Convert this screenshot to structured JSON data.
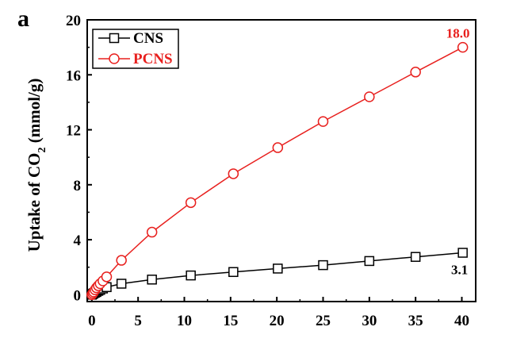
{
  "panel_label": "a",
  "chart_data": {
    "type": "line",
    "title": "",
    "xlabel": "",
    "ylabel": "Uptake of CO₂ (mmol/g)",
    "ylabel_parts": {
      "main": "Uptake of CO",
      "sub": "2",
      "unit": " (mmol/g)"
    },
    "xlim": [
      -0.5,
      41.5
    ],
    "ylim": [
      -0.5,
      20
    ],
    "xticks": [
      0,
      5,
      10,
      15,
      20,
      25,
      30,
      35,
      40
    ],
    "yticks": [
      0,
      4,
      8,
      12,
      16,
      20
    ],
    "legend_position": "top-left",
    "series": [
      {
        "name": "CNS",
        "color": "#000000",
        "marker": "square",
        "x": [
          0,
          0.1,
          0.2,
          0.35,
          0.5,
          0.7,
          0.9,
          1.2,
          1.6,
          3.2,
          6.5,
          10.7,
          15.3,
          20.1,
          25.0,
          30.0,
          35.0,
          40.1
        ],
        "y": [
          0.0,
          0.05,
          0.1,
          0.15,
          0.2,
          0.28,
          0.35,
          0.45,
          0.55,
          0.8,
          1.1,
          1.4,
          1.65,
          1.9,
          2.15,
          2.45,
          2.75,
          3.05
        ]
      },
      {
        "name": "PCNS",
        "color": "#e8201e",
        "marker": "circle",
        "x": [
          0,
          0.1,
          0.2,
          0.35,
          0.5,
          0.7,
          0.9,
          1.2,
          1.6,
          3.2,
          6.5,
          10.7,
          15.3,
          20.1,
          25.0,
          30.0,
          35.0,
          40.1
        ],
        "y": [
          0.0,
          0.1,
          0.2,
          0.35,
          0.5,
          0.65,
          0.8,
          1.0,
          1.3,
          2.5,
          4.55,
          6.7,
          8.8,
          10.7,
          12.6,
          14.4,
          16.2,
          18.0
        ]
      }
    ],
    "annotations": [
      {
        "text": "18.0",
        "series": "PCNS",
        "color": "#e8201e"
      },
      {
        "text": "3.1",
        "series": "CNS",
        "color": "#000000"
      }
    ]
  }
}
